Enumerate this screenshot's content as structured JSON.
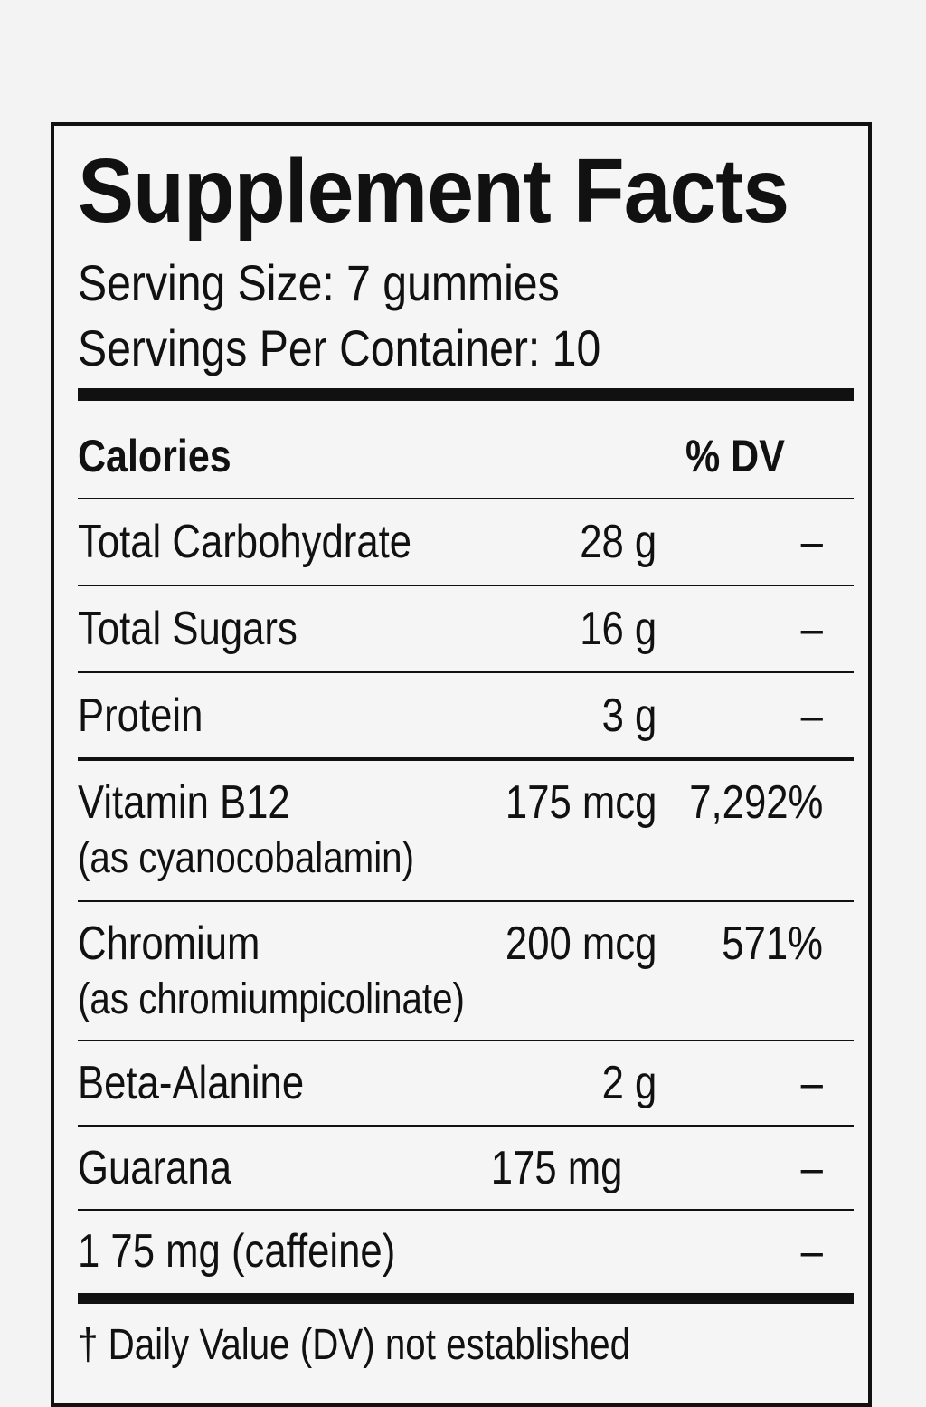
{
  "label": {
    "title": "Supplement Facts",
    "serving_size": "Serving Size: 7 gummies",
    "servings_per_container": "Servings Per Container:  10",
    "header": {
      "calories": "Calories",
      "dv": "% DV"
    },
    "rows": [
      {
        "name": "Total Carbohydrate",
        "sub": "",
        "amount": "28 g",
        "dv": "–"
      },
      {
        "name": "Total Sugars",
        "sub": "",
        "amount": "16 g",
        "dv": "–"
      },
      {
        "name": "Protein",
        "sub": "",
        "amount": "3 g",
        "dv": "–"
      },
      {
        "name": "Vitamin B12",
        "sub": "(as cyanocobalamin)",
        "amount": "175 mcg",
        "dv": "7,292%"
      },
      {
        "name": "Chromium",
        "sub": "(as chromiumpicolinate)",
        "amount": "200 mcg",
        "dv": "571%"
      },
      {
        "name": "Beta-Alanine",
        "sub": "",
        "amount": "2 g",
        "dv": "–"
      },
      {
        "name": "Guarana",
        "sub": "",
        "amount": "175 mg",
        "dv": "–"
      },
      {
        "name": "1 75 mg (caffeine)",
        "sub": "",
        "amount": "",
        "dv": "–"
      }
    ],
    "footnote": "† Daily Value (DV) not established"
  }
}
